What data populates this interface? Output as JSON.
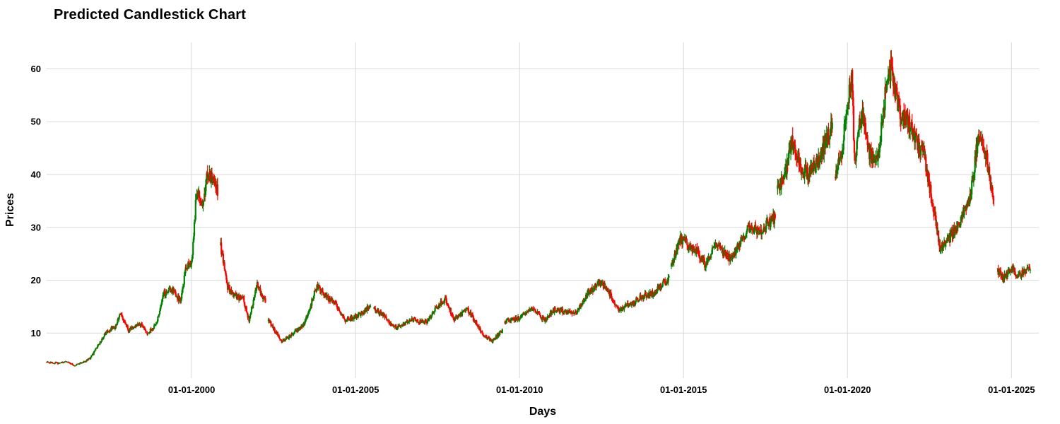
{
  "chart_data": {
    "type": "candlestick",
    "title": "Predicted Candlestick Chart",
    "xlabel": "Days",
    "ylabel": "Prices",
    "x_ticks": [
      "01-01-2000",
      "01-01-2005",
      "01-01-2010",
      "01-01-2015",
      "01-01-2020",
      "01-01-2025"
    ],
    "y_ticks": [
      10,
      20,
      30,
      40,
      50,
      60
    ],
    "ylim": [
      1.5,
      65
    ],
    "xlim": [
      "1995-08-01",
      "2025-11-01"
    ],
    "grid": true,
    "colors": {
      "up": "#008000",
      "down": "#ff0000"
    },
    "gaps": [
      [
        "2000-10-20",
        "2000-11-15"
      ],
      [
        "2002-04-05",
        "2002-05-05"
      ],
      [
        "2005-06-20",
        "2005-07-20"
      ],
      [
        "2009-06-25",
        "2009-07-20"
      ],
      [
        "2014-07-25",
        "2014-08-15"
      ],
      [
        "2017-10-20",
        "2017-11-10"
      ],
      [
        "2019-07-20",
        "2019-08-15"
      ],
      [
        "2024-06-20",
        "2024-07-25"
      ]
    ],
    "close_path": [
      [
        "1995-08-01",
        4.5
      ],
      [
        "1995-12-01",
        4.3
      ],
      [
        "1996-03-01",
        4.6
      ],
      [
        "1996-06-01",
        3.9
      ],
      [
        "1996-09-01",
        4.4
      ],
      [
        "1996-12-01",
        5.3
      ],
      [
        "1997-03-01",
        7.8
      ],
      [
        "1997-06-01",
        10.4
      ],
      [
        "1997-09-01",
        11.2
      ],
      [
        "1997-11-01",
        13.6
      ],
      [
        "1998-02-01",
        10.5
      ],
      [
        "1998-06-01",
        11.8
      ],
      [
        "1998-09-01",
        10.0
      ],
      [
        "1998-12-01",
        11.6
      ],
      [
        "1999-03-01",
        17.5
      ],
      [
        "1999-06-01",
        18.2
      ],
      [
        "1999-09-01",
        16.0
      ],
      [
        "1999-11-01",
        22.5
      ],
      [
        "2000-01-01",
        23.0
      ],
      [
        "2000-03-01",
        38.0
      ],
      [
        "2000-05-01",
        33.5
      ],
      [
        "2000-07-01",
        40.5
      ],
      [
        "2000-10-20",
        37.0
      ],
      [
        "2000-11-15",
        27.0
      ],
      [
        "2001-02-01",
        19.0
      ],
      [
        "2001-05-01",
        17.0
      ],
      [
        "2001-08-01",
        16.5
      ],
      [
        "2001-10-01",
        12.5
      ],
      [
        "2002-01-01",
        19.0
      ],
      [
        "2002-04-05",
        16.0
      ],
      [
        "2002-05-05",
        12.5
      ],
      [
        "2002-08-01",
        10.0
      ],
      [
        "2002-10-01",
        8.5
      ],
      [
        "2003-01-01",
        9.5
      ],
      [
        "2003-06-01",
        11.5
      ],
      [
        "2003-09-01",
        16.0
      ],
      [
        "2003-11-01",
        19.0
      ],
      [
        "2004-03-01",
        16.5
      ],
      [
        "2004-06-01",
        15.5
      ],
      [
        "2004-09-01",
        12.5
      ],
      [
        "2004-12-01",
        13.0
      ],
      [
        "2005-03-01",
        13.5
      ],
      [
        "2005-06-20",
        15.5
      ],
      [
        "2005-07-20",
        14.5
      ],
      [
        "2005-11-01",
        13.5
      ],
      [
        "2006-03-01",
        11.0
      ],
      [
        "2006-06-01",
        11.5
      ],
      [
        "2006-09-01",
        12.5
      ],
      [
        "2007-03-01",
        12.0
      ],
      [
        "2007-06-01",
        14.5
      ],
      [
        "2007-10-01",
        16.5
      ],
      [
        "2008-01-01",
        12.5
      ],
      [
        "2008-06-01",
        14.5
      ],
      [
        "2008-09-01",
        12.0
      ],
      [
        "2008-12-01",
        9.5
      ],
      [
        "2009-03-01",
        8.5
      ],
      [
        "2009-06-25",
        10.5
      ],
      [
        "2009-07-20",
        12.0
      ],
      [
        "2010-01-01",
        13.0
      ],
      [
        "2010-06-01",
        14.5
      ],
      [
        "2010-10-01",
        12.5
      ],
      [
        "2011-02-01",
        14.5
      ],
      [
        "2011-06-01",
        14.0
      ],
      [
        "2011-10-01",
        14.0
      ],
      [
        "2012-02-01",
        17.5
      ],
      [
        "2012-06-01",
        19.5
      ],
      [
        "2012-09-01",
        18.5
      ],
      [
        "2013-01-01",
        14.5
      ],
      [
        "2013-06-01",
        15.5
      ],
      [
        "2013-10-01",
        17.0
      ],
      [
        "2014-02-01",
        17.5
      ],
      [
        "2014-07-25",
        20.5
      ],
      [
        "2014-08-15",
        22.5
      ],
      [
        "2014-12-01",
        28.0
      ],
      [
        "2015-03-01",
        26.5
      ],
      [
        "2015-06-01",
        25.5
      ],
      [
        "2015-09-01",
        23.0
      ],
      [
        "2016-01-01",
        27.0
      ],
      [
        "2016-06-01",
        24.0
      ],
      [
        "2016-09-01",
        26.5
      ],
      [
        "2017-01-01",
        30.0
      ],
      [
        "2017-05-01",
        29.5
      ],
      [
        "2017-10-20",
        32.0
      ],
      [
        "2017-11-10",
        37.0
      ],
      [
        "2018-02-01",
        40.0
      ],
      [
        "2018-05-01",
        46.5
      ],
      [
        "2018-08-01",
        41.0
      ],
      [
        "2018-11-01",
        40.0
      ],
      [
        "2019-03-01",
        43.0
      ],
      [
        "2019-07-20",
        50.0
      ],
      [
        "2019-08-15",
        40.0
      ],
      [
        "2019-11-01",
        44.0
      ],
      [
        "2020-01-10",
        55.0
      ],
      [
        "2020-02-20",
        59.0
      ],
      [
        "2020-03-20",
        42.0
      ],
      [
        "2020-06-01",
        52.0
      ],
      [
        "2020-09-01",
        44.0
      ],
      [
        "2020-12-01",
        42.5
      ],
      [
        "2021-03-01",
        56.0
      ],
      [
        "2021-05-01",
        60.0
      ],
      [
        "2021-08-01",
        52.0
      ],
      [
        "2021-11-01",
        50.0
      ],
      [
        "2022-02-01",
        46.5
      ],
      [
        "2022-05-01",
        44.0
      ],
      [
        "2022-08-01",
        35.0
      ],
      [
        "2022-11-01",
        25.5
      ],
      [
        "2023-03-01",
        28.5
      ],
      [
        "2023-06-01",
        30.5
      ],
      [
        "2023-10-01",
        36.0
      ],
      [
        "2024-01-01",
        48.0
      ],
      [
        "2024-04-01",
        43.0
      ],
      [
        "2024-06-20",
        34.0
      ],
      [
        "2024-07-25",
        22.0
      ],
      [
        "2024-10-01",
        20.5
      ],
      [
        "2025-01-01",
        22.0
      ],
      [
        "2025-04-01",
        21.0
      ],
      [
        "2025-08-01",
        22.5
      ]
    ]
  }
}
